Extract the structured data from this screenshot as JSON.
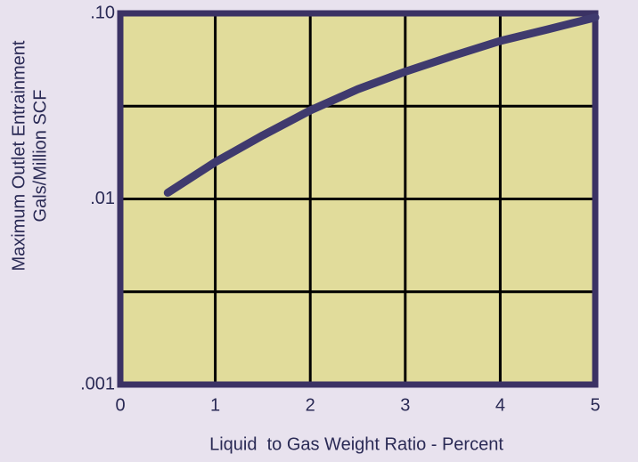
{
  "chart_data": {
    "type": "line",
    "ylabel": [
      "Maximum Outlet Entrainment",
      "Gals/Million SCF"
    ],
    "xlabel": "Liquid  to Gas Weight Ratio - Percent",
    "x": [
      0.5,
      1,
      1.5,
      2,
      2.5,
      3,
      3.5,
      4,
      4.5,
      5
    ],
    "series": [
      {
        "name": null,
        "color": "#3f3a6e",
        "values": [
          0.0108,
          0.0158,
          0.022,
          0.03,
          0.039,
          0.0485,
          0.059,
          0.071,
          0.082,
          0.095
        ]
      }
    ],
    "xlim": [
      0,
      5
    ],
    "xticks": [
      0,
      1,
      2,
      3,
      4,
      5
    ],
    "ylim": [
      0.001,
      0.1
    ],
    "yticks": [
      {
        "value": 0.001,
        "label": ".001"
      },
      {
        "value": 0.01,
        "label": ".01"
      },
      {
        "value": 0.1,
        "label": ".10"
      }
    ],
    "ylog": true,
    "grid": true,
    "plot_color": "#e1dc9b",
    "border_color": "#3b3264"
  }
}
